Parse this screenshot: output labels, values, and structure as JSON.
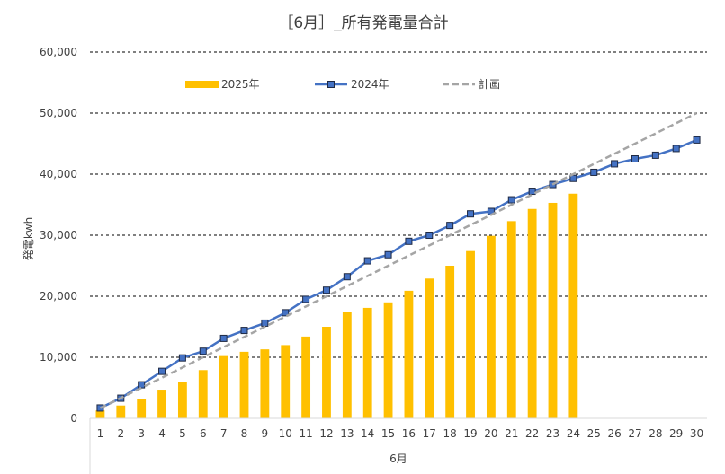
{
  "chart_data": {
    "type": "bar",
    "title": "［6月］_所有発電量合計",
    "xlabel": "6月",
    "ylabel": "発電kwh",
    "ylim": [
      0,
      60000
    ],
    "yticks": [
      0,
      10000,
      20000,
      30000,
      40000,
      50000,
      60000
    ],
    "ytick_labels": [
      "0",
      "10,000",
      "20,000",
      "30,000",
      "40,000",
      "50,000",
      "60,000"
    ],
    "grid": true,
    "legend_position": "top",
    "categories": [
      "1",
      "2",
      "3",
      "4",
      "5",
      "6",
      "7",
      "8",
      "9",
      "10",
      "11",
      "12",
      "13",
      "14",
      "15",
      "16",
      "17",
      "18",
      "19",
      "20",
      "21",
      "22",
      "23",
      "24",
      "25",
      "26",
      "27",
      "28",
      "29",
      "30"
    ],
    "series": [
      {
        "name": "2025年",
        "type": "bar",
        "color": "#FFC000",
        "values": [
          1300,
          2100,
          3100,
          4700,
          5900,
          7900,
          10200,
          10900,
          11300,
          12000,
          13400,
          15000,
          17400,
          18100,
          19000,
          20900,
          22900,
          25000,
          27400,
          29900,
          32300,
          34300,
          35300,
          36800,
          null,
          null,
          null,
          null,
          null,
          null
        ]
      },
      {
        "name": "2024年",
        "type": "line",
        "color": "#4472C4",
        "values": [
          1700,
          3300,
          5500,
          7700,
          9900,
          11000,
          13100,
          14400,
          15600,
          17300,
          19500,
          21000,
          23200,
          25800,
          26800,
          29000,
          30000,
          31600,
          33500,
          33900,
          35800,
          37200,
          38300,
          39300,
          40300,
          41700,
          42500,
          43100,
          44200,
          45600
        ]
      },
      {
        "name": "計画",
        "type": "line",
        "style": "dashed",
        "color": "#A5A5A5",
        "values": [
          1667,
          3333,
          5000,
          6667,
          8333,
          10000,
          11667,
          13333,
          15000,
          16667,
          18333,
          20000,
          21667,
          23333,
          25000,
          26667,
          28333,
          30000,
          31667,
          33333,
          35000,
          36667,
          38333,
          40000,
          41667,
          43333,
          45000,
          46667,
          48333,
          50000
        ]
      }
    ]
  }
}
